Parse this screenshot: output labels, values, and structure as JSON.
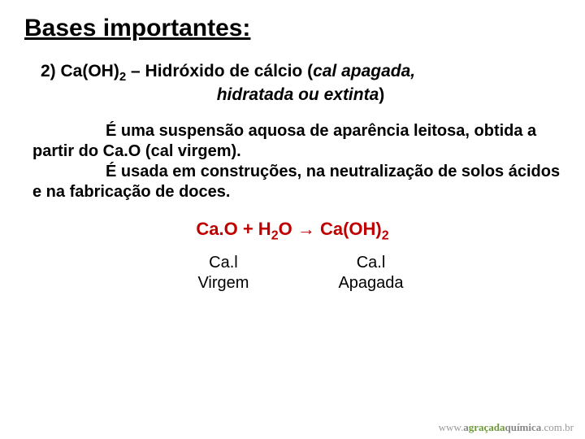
{
  "title": "Bases importantes:",
  "subtitle_prefix": "2) Ca(OH)",
  "subtitle_sub1": "2",
  "subtitle_mid": " – Hidróxido de cálcio (",
  "subtitle_italic": "cal apagada,",
  "subtitle_line2": "hidratada ou extinta",
  "subtitle_close": ")",
  "para1_a": "É uma suspensão aquosa de aparência leitosa, obtida a partir do Ca.O (cal virgem).",
  "para1_b": "É usada em construções, na neutralização de solos ácidos e na fabricação de doces.",
  "eq_a": "Ca.O + H",
  "eq_sub1": "2",
  "eq_b": "O ",
  "eq_arrow": "→",
  "eq_c": " Ca(OH)",
  "eq_sub2": "2",
  "label1_a": "Ca.l",
  "label1_b": "Virgem",
  "label2_a": "Ca.l",
  "label2_b": "Apagada",
  "footer_a": "www.",
  "footer_b": "a",
  "footer_c": "graçada",
  "footer_d": "química",
  "footer_e": ".com.br"
}
